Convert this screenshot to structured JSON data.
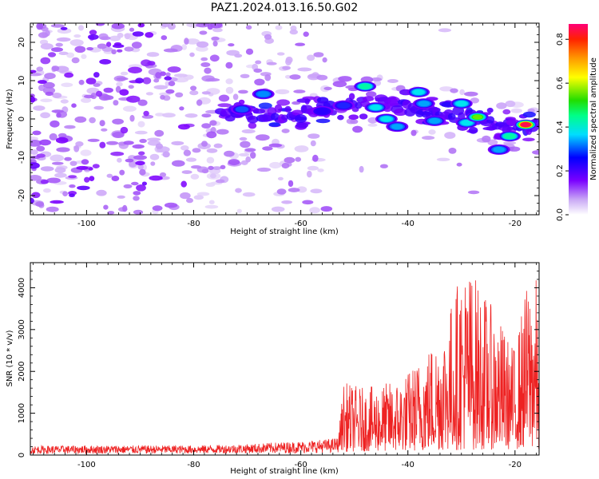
{
  "title": "PAZ1.2024.013.16.50.G02",
  "chart_data": [
    {
      "type": "heatmap",
      "xlabel": "Height of straight line (km)",
      "ylabel": "Frequency (Hz)",
      "xlim": [
        -110.5,
        -15.5
      ],
      "ylim": [
        -25,
        25
      ],
      "xticks": [
        -100,
        -80,
        -60,
        -40,
        -20
      ],
      "yticks": [
        -20,
        -10,
        0,
        10,
        20
      ],
      "colorbar": {
        "label": "Normalized spectral amplitude",
        "range": [
          0.0,
          0.87
        ],
        "ticks": [
          0.0,
          0.2,
          0.4,
          0.6,
          0.8
        ],
        "colormap": "rainbow (purple to red)"
      },
      "ridge": {
        "description": "high-amplitude features following a frequency ridge",
        "x": [
          -110,
          -90,
          -70,
          -60,
          -52,
          -45,
          -38,
          -32,
          -27,
          -22,
          -18,
          -15.5
        ],
        "y": [
          3,
          2,
          1,
          1.5,
          3.5,
          4,
          2.5,
          1,
          0,
          -2,
          -2,
          -2
        ]
      },
      "peaks": [
        {
          "x": -71,
          "y": 2.5,
          "level": 0.35
        },
        {
          "x": -67,
          "y": 6.5,
          "level": 0.38
        },
        {
          "x": -56,
          "y": 2.0,
          "level": 0.3
        },
        {
          "x": -52,
          "y": 3.5,
          "level": 0.32
        },
        {
          "x": -48,
          "y": 8.5,
          "level": 0.5
        },
        {
          "x": -46,
          "y": 3.0,
          "level": 0.45
        },
        {
          "x": -44,
          "y": 0.0,
          "level": 0.45
        },
        {
          "x": -42,
          "y": -2.0,
          "level": 0.4
        },
        {
          "x": -38,
          "y": 7.0,
          "level": 0.45
        },
        {
          "x": -37,
          "y": 4.0,
          "level": 0.4
        },
        {
          "x": -35,
          "y": -0.5,
          "level": 0.4
        },
        {
          "x": -30,
          "y": 4.0,
          "level": 0.45
        },
        {
          "x": -29,
          "y": -1.0,
          "level": 0.45
        },
        {
          "x": -27,
          "y": 0.5,
          "level": 0.6
        },
        {
          "x": -23,
          "y": -8.0,
          "level": 0.4
        },
        {
          "x": -21,
          "y": -4.5,
          "level": 0.5
        },
        {
          "x": -18,
          "y": -1.5,
          "level": 0.85
        }
      ]
    },
    {
      "type": "line",
      "xlabel": "Height of straight line (km)",
      "ylabel": "SNR (10 * v/v)",
      "xlim": [
        -110.5,
        -15.5
      ],
      "ylim": [
        0,
        4600
      ],
      "xticks": [
        -100,
        -80,
        -60,
        -40,
        -20
      ],
      "yticks": [
        0,
        1000,
        2000,
        3000,
        4000
      ],
      "series": [
        {
          "color": "#ee2222",
          "envelope_x": [
            -110.5,
            -100,
            -90,
            -80,
            -70,
            -65,
            -60,
            -55,
            -53,
            -52,
            -48,
            -45,
            -42,
            -40,
            -38,
            -35,
            -33,
            -30,
            -28,
            -25,
            -23,
            -21,
            -20,
            -19,
            -18,
            -17,
            -16,
            -15.5
          ],
          "envelope_y": [
            220,
            230,
            230,
            230,
            260,
            300,
            330,
            380,
            420,
            1750,
            1600,
            1700,
            1800,
            2000,
            2300,
            2800,
            3200,
            4500,
            4450,
            3700,
            3300,
            2700,
            2600,
            3300,
            4000,
            4300,
            4250,
            2000
          ],
          "baseline_x": [
            -110.5,
            -80,
            -60,
            -55,
            -53,
            -52,
            -40,
            -30,
            -20,
            -16,
            -15.5
          ],
          "baseline_y": [
            60,
            70,
            90,
            110,
            130,
            200,
            250,
            300,
            350,
            400,
            100
          ]
        }
      ]
    }
  ]
}
